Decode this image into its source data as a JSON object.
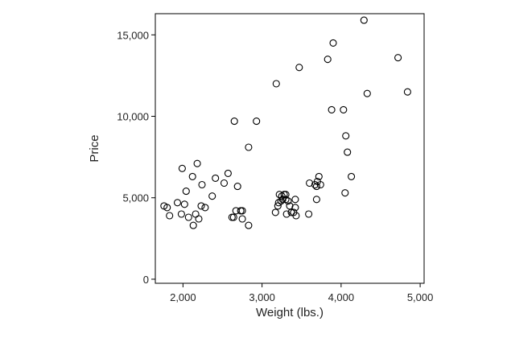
{
  "chart_data": {
    "type": "scatter",
    "title": "",
    "xlabel": "Weight (lbs.)",
    "ylabel": "Price",
    "xlim": [
      1650,
      5050
    ],
    "ylim": [
      -250,
      16300
    ],
    "xticks": [
      2000,
      3000,
      4000,
      5000
    ],
    "xtick_labels": [
      "2,000",
      "3,000",
      "4,000",
      "5,000"
    ],
    "yticks": [
      0,
      5000,
      10000,
      15000
    ],
    "ytick_labels": [
      "0",
      "5,000",
      "10,000",
      "15,000"
    ],
    "grid": false,
    "marker": "hollow-circle",
    "series": [
      {
        "x": [
          1760,
          1800,
          1830,
          1930,
          1980,
          1990,
          2020,
          2040,
          2070,
          2120,
          2130,
          2160,
          2180,
          2200,
          2230,
          2240,
          2280,
          2370,
          2410,
          2520,
          2570,
          2620,
          2640,
          2650,
          2670,
          2690,
          2730,
          2750,
          2750,
          2830,
          2830,
          2930,
          3170,
          3180,
          3200,
          3210,
          3220,
          3240,
          3250,
          3260,
          3280,
          3300,
          3300,
          3310,
          3330,
          3350,
          3370,
          3400,
          3420,
          3430,
          3470,
          3420,
          3590,
          3600,
          3670,
          3690,
          3690,
          3700,
          3720,
          3740,
          3830,
          3880,
          3900,
          4030,
          4050,
          4060,
          4080,
          4130,
          4290,
          4330,
          4720,
          4840
        ],
        "y": [
          4500,
          4400,
          3900,
          4700,
          4000,
          6800,
          4600,
          5400,
          3800,
          6300,
          3300,
          4000,
          7100,
          3700,
          4500,
          5800,
          4400,
          5100,
          6200,
          5900,
          6500,
          3800,
          3800,
          9700,
          4200,
          5700,
          4200,
          4200,
          3700,
          8100,
          3300,
          9700,
          4100,
          12000,
          4500,
          4700,
          5200,
          4800,
          5100,
          4900,
          5200,
          4900,
          5200,
          4000,
          4800,
          4500,
          4100,
          4100,
          4400,
          3900,
          13000,
          4900,
          4000,
          5900,
          5800,
          5700,
          4900,
          6000,
          6300,
          5800,
          13500,
          10400,
          14500,
          10400,
          5300,
          8800,
          7800,
          6300,
          15900,
          11400,
          13600,
          11500
        ]
      }
    ]
  }
}
